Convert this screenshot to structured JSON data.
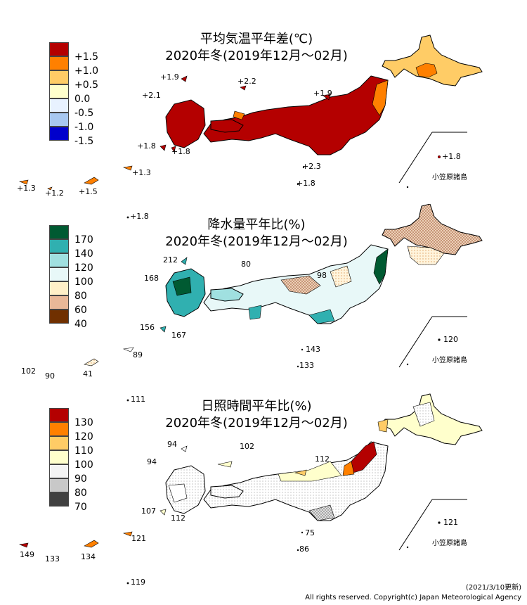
{
  "colors": {
    "temp": {
      "p15": "#b40000",
      "p10": "#ff8000",
      "p05": "#ffcc66",
      "p00": "#ffffcc",
      "m05": "#e8f2ff",
      "m10": "#a8c8f0",
      "m15": "#0000cc"
    },
    "prec": {
      "p170": "#005a32",
      "p140": "#30b0b0",
      "p120": "#a0e0e0",
      "p100": "#e8f8f8",
      "p80": "#fff0c8",
      "p60": "#e8b898",
      "p40": "#703000"
    },
    "sun": {
      "p130": "#b40000",
      "p120": "#ff8000",
      "p110": "#ffcc66",
      "p100": "#ffffcc",
      "p90": "#f4f4f4",
      "p80": "#c8c8c8",
      "p70": "#404040"
    }
  },
  "temperature": {
    "title_line1": "平均気温平年差(℃)",
    "title_line2": "2020年冬(2019年12月～02月)",
    "legend": [
      "+1.5",
      "+1.0",
      "+0.5",
      "0.0",
      "-0.5",
      "-1.0",
      "-1.5"
    ],
    "values": {
      "v1": "+1.9",
      "v2": "+2.2",
      "v3": "+2.1",
      "v4": "+1.9",
      "v5": "+1.8",
      "v6": "+1.8",
      "v7": "+1.8",
      "v8": "+2.3",
      "v9": "+1.8",
      "v10": "+1.3",
      "v11": "+1.3",
      "v12": "+1.2",
      "v13": "+1.5",
      "v14": "+1.8"
    },
    "ogasawara": "小笠原諸島"
  },
  "precipitation": {
    "title_line1": "降水量平年比(%)",
    "title_line2": "2020年冬(2019年12月～02月)",
    "legend": [
      "170",
      "140",
      "120",
      "100",
      "80",
      "60",
      "40"
    ],
    "values": {
      "v1": "212",
      "v2": "80",
      "v3": "168",
      "v4": "98",
      "v5": "156",
      "v6": "167",
      "v7": "120",
      "v8": "143",
      "v9": "133",
      "v10": "89",
      "v11": "102",
      "v12": "90",
      "v13": "41",
      "v14": "111"
    },
    "ogasawara": "小笠原諸島"
  },
  "sunshine": {
    "title_line1": "日照時間平年比(%)",
    "title_line2": "2020年冬(2019年12月～02月)",
    "legend": [
      "130",
      "120",
      "110",
      "100",
      "90",
      "80",
      "70"
    ],
    "values": {
      "v1": "94",
      "v2": "102",
      "v3": "94",
      "v4": "112",
      "v5": "107",
      "v6": "112",
      "v7": "121",
      "v8": "75",
      "v9": "86",
      "v10": "121",
      "v11": "149",
      "v12": "133",
      "v13": "134",
      "v14": "119"
    },
    "ogasawara": "小笠原諸島"
  },
  "footer": {
    "date": "(2021/3/10更新)",
    "copyright": "All rights reserved. Copyright(c) Japan Meteorological Agency"
  }
}
